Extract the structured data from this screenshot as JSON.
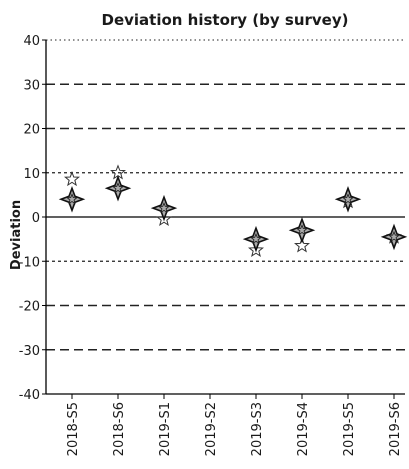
{
  "chart_data": {
    "type": "scatter",
    "title": "Deviation history (by survey)",
    "xlabel": "",
    "ylabel": "Deviation",
    "categories": [
      "2018-S5",
      "2018-S6",
      "2019-S1",
      "2019-S2",
      "2019-S3",
      "2019-S4",
      "2019-S5",
      "2019-S6"
    ],
    "ylim": [
      -40,
      40
    ],
    "yticks": [
      40,
      30,
      20,
      10,
      0,
      -10,
      -20,
      -30,
      -40
    ],
    "grid": true,
    "series": [
      {
        "marker": "diamond-star",
        "values": [
          4,
          6.5,
          2,
          null,
          -5,
          -3,
          4,
          -4.5
        ]
      },
      {
        "marker": "small-star",
        "values": [
          8.5,
          10,
          -0.5,
          null,
          -7.5,
          -6.5,
          3.5,
          -4.5
        ]
      }
    ],
    "colors": {
      "axis": "#000000",
      "grid": "#222222",
      "marker": "#333333",
      "marker_fill": "#aaaaaa",
      "text": "#1a1a1a"
    }
  }
}
